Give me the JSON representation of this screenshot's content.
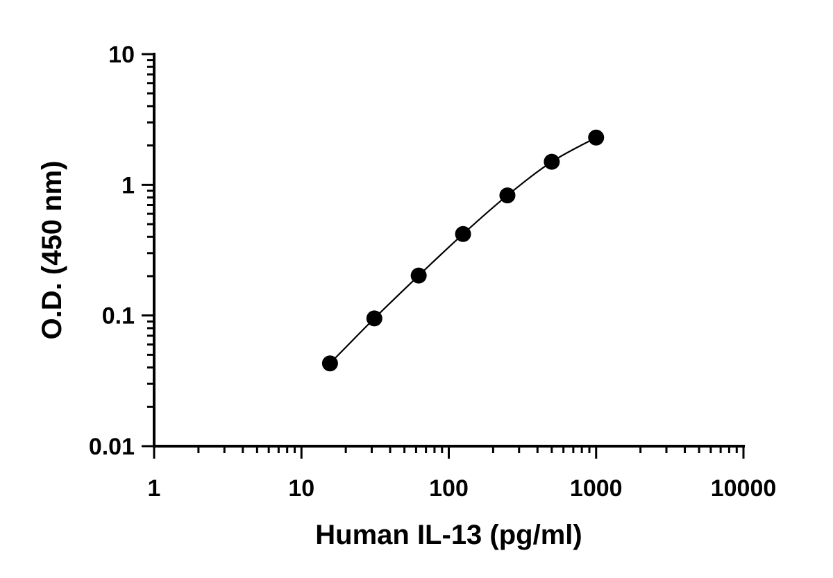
{
  "chart_data": {
    "type": "scatter",
    "title": "",
    "xlabel": "Human IL-13 (pg/ml)",
    "ylabel": "O.D. (450 nm)",
    "xscale": "log",
    "yscale": "log",
    "xlim": [
      1,
      10000
    ],
    "ylim": [
      0.01,
      10
    ],
    "xticks": [
      {
        "value": 1,
        "label": "1"
      },
      {
        "value": 10,
        "label": "10"
      },
      {
        "value": 100,
        "label": "100"
      },
      {
        "value": 1000,
        "label": "1000"
      },
      {
        "value": 10000,
        "label": "10000"
      }
    ],
    "yticks": [
      {
        "value": 0.01,
        "label": "0.01"
      },
      {
        "value": 0.1,
        "label": "0.1"
      },
      {
        "value": 1,
        "label": "1"
      },
      {
        "value": 10,
        "label": "10"
      }
    ],
    "grid": false,
    "series": [
      {
        "x": [
          15.625,
          31.25,
          62.5,
          125,
          250,
          500,
          1000
        ],
        "y": [
          0.043,
          0.095,
          0.202,
          0.42,
          0.83,
          1.5,
          2.3
        ],
        "marker": "circle",
        "color": "#000000",
        "fit_curve": true
      }
    ]
  }
}
